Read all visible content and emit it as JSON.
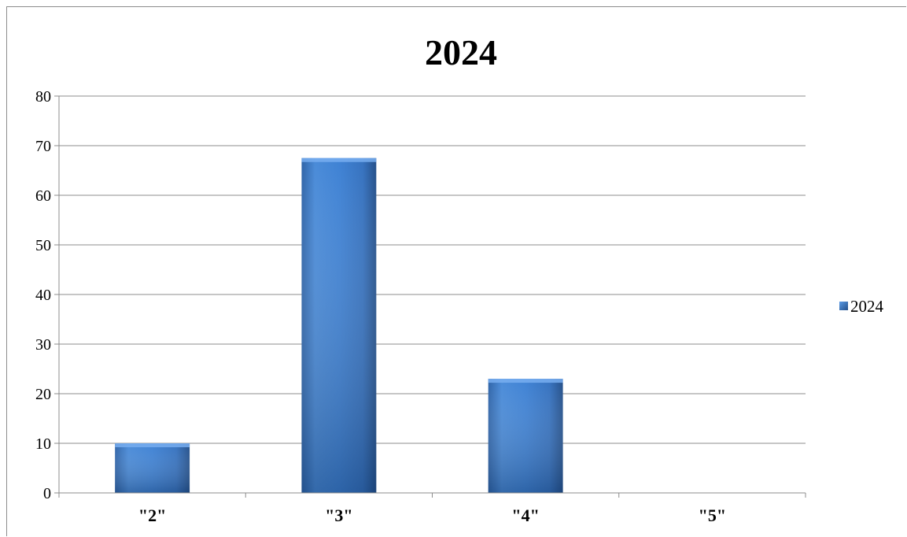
{
  "chart_data": {
    "type": "bar",
    "title": "2024",
    "categories": [
      "\"2\"",
      "\"3\"",
      "\"4\"",
      "\"5\""
    ],
    "series": [
      {
        "name": "2024",
        "values": [
          10,
          67.5,
          23,
          0
        ],
        "color": "#3d7fd0"
      }
    ],
    "ylim": [
      0,
      80
    ],
    "yticks": [
      0,
      10,
      20,
      30,
      40,
      50,
      60,
      70,
      80
    ],
    "grid": true,
    "legend": "right"
  }
}
